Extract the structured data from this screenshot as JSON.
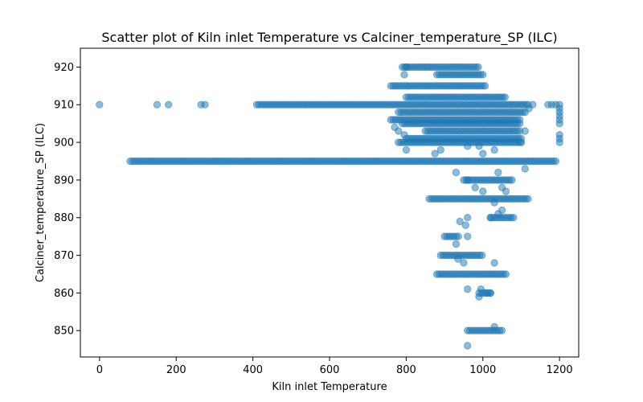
{
  "chart_data": {
    "type": "scatter",
    "title": "Scatter plot of Kiln inlet Temperature vs Calciner_temperature_SP (ILC)",
    "xlabel": "Kiln inlet Temperature",
    "ylabel": "Calciner_temperature_SP (ILC)",
    "xlim": [
      -50,
      1250
    ],
    "ylim": [
      843,
      925
    ],
    "xticks": [
      0,
      200,
      400,
      600,
      800,
      1000,
      1200
    ],
    "yticks": [
      850,
      860,
      870,
      880,
      890,
      900,
      910,
      920
    ],
    "point_color": "#1f77b4",
    "point_alpha": 0.5,
    "grid": false,
    "bands": [
      {
        "y": 910,
        "x_from": 410,
        "x_to": 1120
      },
      {
        "y": 895,
        "x_from": 80,
        "x_to": 1190
      },
      {
        "y": 920,
        "x_from": 790,
        "x_to": 990
      },
      {
        "y": 915,
        "x_from": 760,
        "x_to": 1010
      },
      {
        "y": 912,
        "x_from": 800,
        "x_to": 1060
      },
      {
        "y": 908,
        "x_from": 780,
        "x_to": 1110
      },
      {
        "y": 906,
        "x_from": 760,
        "x_to": 1100
      },
      {
        "y": 905,
        "x_from": 790,
        "x_to": 1100
      },
      {
        "y": 903,
        "x_from": 850,
        "x_to": 1100
      },
      {
        "y": 901,
        "x_from": 800,
        "x_to": 1100
      },
      {
        "y": 900,
        "x_from": 780,
        "x_to": 1100
      },
      {
        "y": 918,
        "x_from": 880,
        "x_to": 1000
      },
      {
        "y": 890,
        "x_from": 950,
        "x_to": 1080
      },
      {
        "y": 885,
        "x_from": 860,
        "x_to": 1120
      },
      {
        "y": 880,
        "x_from": 1020,
        "x_to": 1080
      },
      {
        "y": 875,
        "x_from": 900,
        "x_to": 940
      },
      {
        "y": 870,
        "x_from": 890,
        "x_to": 1000
      },
      {
        "y": 865,
        "x_from": 880,
        "x_to": 1060
      },
      {
        "y": 860,
        "x_from": 990,
        "x_to": 1020
      },
      {
        "y": 850,
        "x_from": 960,
        "x_to": 1050
      }
    ],
    "points": [
      [
        0,
        910
      ],
      [
        150,
        910
      ],
      [
        180,
        910
      ],
      [
        265,
        910
      ],
      [
        275,
        910
      ],
      [
        1200,
        910
      ],
      [
        1200,
        909
      ],
      [
        1200,
        908
      ],
      [
        1200,
        907
      ],
      [
        1200,
        906
      ],
      [
        1200,
        905
      ],
      [
        1200,
        902
      ],
      [
        1200,
        901
      ],
      [
        1200,
        900
      ],
      [
        1180,
        910
      ],
      [
        1190,
        910
      ],
      [
        1170,
        910
      ],
      [
        795,
        918
      ],
      [
        800,
        920
      ],
      [
        795,
        902
      ],
      [
        800,
        898
      ],
      [
        770,
        904
      ],
      [
        780,
        903
      ],
      [
        875,
        897
      ],
      [
        890,
        898
      ],
      [
        930,
        892
      ],
      [
        960,
        890
      ],
      [
        980,
        888
      ],
      [
        1000,
        887
      ],
      [
        1040,
        892
      ],
      [
        1050,
        888
      ],
      [
        1060,
        887
      ],
      [
        1030,
        884
      ],
      [
        1110,
        893
      ],
      [
        960,
        899
      ],
      [
        990,
        899
      ],
      [
        1030,
        898
      ],
      [
        1000,
        897
      ],
      [
        1050,
        882
      ],
      [
        1040,
        881
      ],
      [
        1020,
        880
      ],
      [
        960,
        880
      ],
      [
        955,
        878
      ],
      [
        940,
        879
      ],
      [
        960,
        875
      ],
      [
        930,
        873
      ],
      [
        935,
        869
      ],
      [
        950,
        868
      ],
      [
        1030,
        868
      ],
      [
        960,
        861
      ],
      [
        990,
        859
      ],
      [
        995,
        861
      ],
      [
        1010,
        860
      ],
      [
        1020,
        860
      ],
      [
        1030,
        851
      ],
      [
        960,
        846
      ],
      [
        1100,
        900
      ],
      [
        1110,
        903
      ],
      [
        1120,
        909
      ],
      [
        1130,
        910
      ]
    ]
  }
}
